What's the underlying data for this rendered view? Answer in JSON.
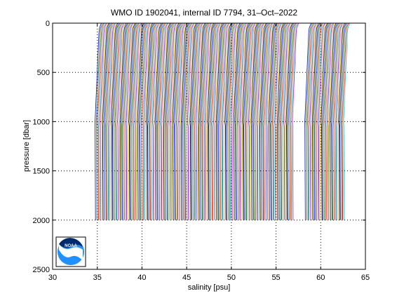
{
  "chart_data": {
    "type": "line",
    "title": "WMO ID 1902041, internal ID 7794, 31–Oct–2022",
    "xlabel": "salinity [psu]",
    "ylabel": "pressure [dbar]",
    "xlim": [
      30,
      65
    ],
    "ylim": [
      0,
      2500
    ],
    "y_reversed": true,
    "grid": true,
    "grid_style": "dotted",
    "x_ticks": [
      30,
      35,
      40,
      45,
      50,
      55,
      60,
      65
    ],
    "y_ticks": [
      0,
      500,
      1000,
      1500,
      2000,
      2500
    ],
    "description_of_series": "Waterfall of successive salinity profiles, each offset along the salinity axis; profiles span roughly 0–2000 dbar with first profile starting near 35 psu and the last near 62.5 psu.",
    "series_colors": [
      "#0000ff",
      "#008000",
      "#ff0000",
      "#00bfbf",
      "#bf00bf",
      "#bfbf00",
      "#000000"
    ],
    "profiles": {
      "first_surface_salinity": 35.2,
      "last_surface_salinity": 63.0,
      "count": 200,
      "max_pressure": 2000,
      "gaps": [
        [
          57.3,
          58.6
        ]
      ]
    }
  },
  "logo": {
    "name": "noaa-logo",
    "text": "NOAA"
  }
}
